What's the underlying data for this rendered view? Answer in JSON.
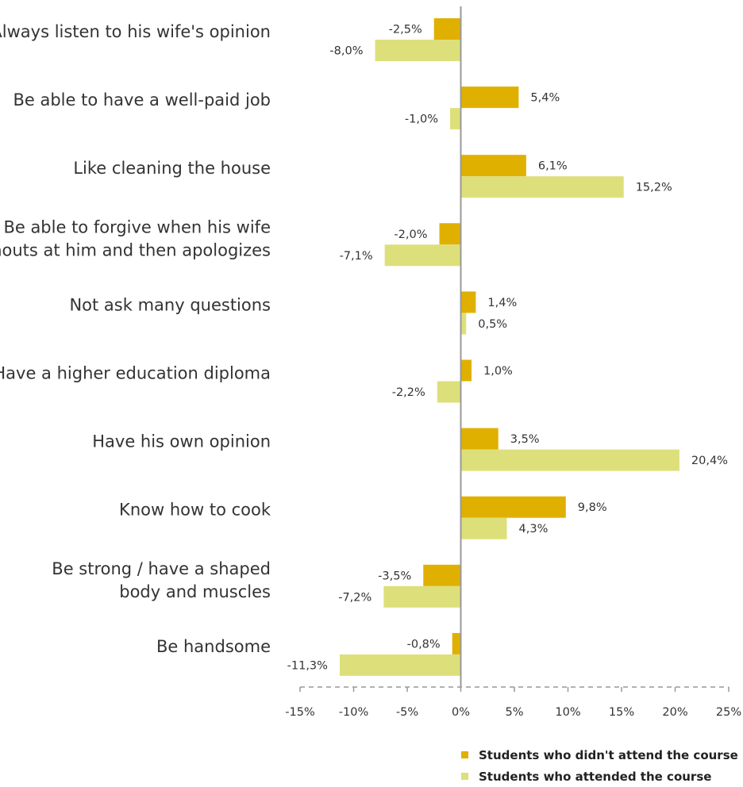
{
  "chart_data": {
    "type": "bar",
    "orientation": "horizontal",
    "categories": [
      [
        "Always listen to his wife's opinion"
      ],
      [
        "Be able to have a well-paid job"
      ],
      [
        "Like cleaning the house"
      ],
      [
        "Be able to forgive when his wife",
        "shouts at him and then apologizes"
      ],
      [
        "Not ask many questions"
      ],
      [
        "Have a higher education diploma"
      ],
      [
        "Have his own opinion"
      ],
      [
        "Know how to cook"
      ],
      [
        "Be strong / have a shaped",
        "body and muscles"
      ],
      [
        "Be handsome"
      ]
    ],
    "series": [
      {
        "name": "Students who didn't attend the course",
        "color": "#e0b000",
        "values": [
          -2.5,
          5.4,
          6.1,
          -2.0,
          1.4,
          1.0,
          3.5,
          9.8,
          -3.5,
          -0.8
        ],
        "labels": [
          "-2,5%",
          "5,4%",
          "6,1%",
          "-2,0%",
          "1,4%",
          "1,0%",
          "3,5%",
          "9,8%",
          "-3,5%",
          "-0,8%"
        ]
      },
      {
        "name": "Students who attended the course",
        "color": "#dde07a",
        "values": [
          -8.0,
          -1.0,
          15.2,
          -7.1,
          0.5,
          -2.2,
          20.4,
          4.3,
          -7.2,
          -11.3
        ],
        "labels": [
          "-8,0%",
          "-1,0%",
          "15,2%",
          "-7,1%",
          "0,5%",
          "-2,2%",
          "20,4%",
          "4,3%",
          "-7,2%",
          "-11,3%"
        ]
      }
    ],
    "xlim": [
      -15,
      25
    ],
    "xticks": [
      -15,
      -10,
      -5,
      0,
      5,
      10,
      15,
      20,
      25
    ],
    "xtick_labels": [
      "-15%",
      "-10%",
      "-5%",
      "0%",
      "5%",
      "10%",
      "15%",
      "20%",
      "25%"
    ],
    "axis_color": "#999999",
    "legend_position": "bottom-right"
  }
}
